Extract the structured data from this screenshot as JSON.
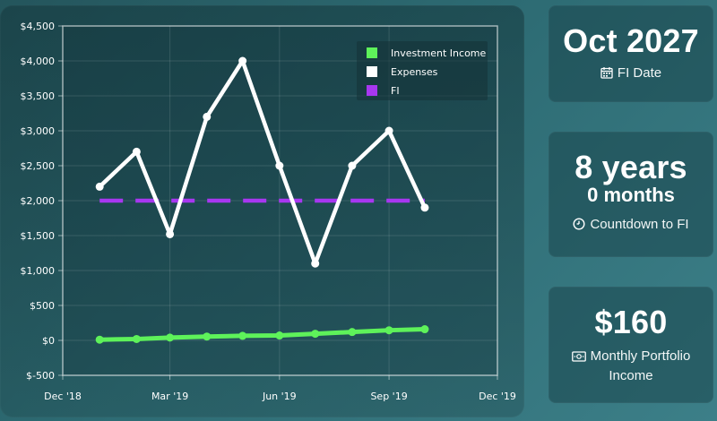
{
  "cards": {
    "fi_date": {
      "value": "Oct 2027",
      "label": "FI Date",
      "icon": "calendar-icon"
    },
    "countdown": {
      "years": "8 years",
      "months": "0 months",
      "label": "Countdown to FI",
      "icon": "clock-icon"
    },
    "monthly_income": {
      "value": "$160",
      "label": "Monthly Portfolio Income",
      "icon": "money-icon"
    }
  },
  "chart_data": {
    "type": "line",
    "x_tick_labels": [
      "Dec '18",
      "Mar '19",
      "Jun '19",
      "Sep '19",
      "Dec '19"
    ],
    "x_tick_dates": [
      "2018-12-01",
      "2019-03-01",
      "2019-06-01",
      "2019-09-01",
      "2019-12-01"
    ],
    "xlim": [
      "2018-12-01",
      "2019-12-01"
    ],
    "ylim": [
      -500,
      4500
    ],
    "y_ticks": [
      -500,
      0,
      500,
      1000,
      1500,
      2000,
      2500,
      3000,
      3500,
      4000,
      4500
    ],
    "y_tick_labels": [
      "$-500",
      "$0",
      "$500",
      "$1,000",
      "$1,500",
      "$2,000",
      "$2,500",
      "$3,000",
      "$3,500",
      "$4,000",
      "$4,500"
    ],
    "grid": true,
    "legend_position": "top-right",
    "x": [
      "2019-01-01",
      "2019-02-01",
      "2019-03-01",
      "2019-04-01",
      "2019-05-01",
      "2019-06-01",
      "2019-07-01",
      "2019-08-01",
      "2019-09-01",
      "2019-10-01"
    ],
    "series": [
      {
        "name": "Investment Income",
        "color": "#5ef25a",
        "style": "solid",
        "values": [
          10,
          20,
          40,
          55,
          65,
          70,
          95,
          120,
          145,
          160
        ]
      },
      {
        "name": "Expenses",
        "color": "#ffffff",
        "style": "solid",
        "values": [
          2200,
          2700,
          1520,
          3200,
          4000,
          2500,
          1100,
          2500,
          3000,
          1900
        ]
      },
      {
        "name": "FI",
        "color": "#a737f0",
        "style": "dashed",
        "values": [
          2000,
          2000,
          2000,
          2000,
          2000,
          2000,
          2000,
          2000,
          2000,
          2000
        ]
      }
    ]
  }
}
